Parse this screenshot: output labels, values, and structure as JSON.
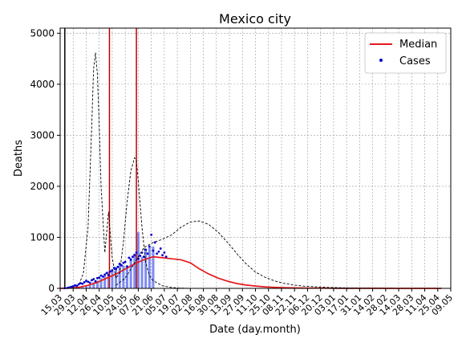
{
  "chart_data": {
    "type": "line",
    "title": "Mexico city",
    "xlabel": "Date (day.month)",
    "ylabel": "Deaths",
    "ylim": [
      0,
      5100
    ],
    "yticks": [
      0,
      1000,
      2000,
      3000,
      4000,
      5000
    ],
    "grid": true,
    "legend_position": "top-right",
    "x_tick_labels": [
      "15.03",
      "29.03",
      "12.04",
      "26.04",
      "10.05",
      "24.05",
      "07.06",
      "21.06",
      "05.07",
      "19.07",
      "02.08",
      "16.08",
      "30.08",
      "13.09",
      "27.09",
      "11.10",
      "25.10",
      "08.11",
      "22.11",
      "06.12",
      "20.12",
      "03.01",
      "17.01",
      "31.01",
      "14.02",
      "28.02",
      "14.03",
      "28.03",
      "11.04",
      "25.04",
      "09.05"
    ],
    "x_range_days": [
      0,
      420
    ],
    "vertical_lines": [
      {
        "day": 5,
        "color": "#000000"
      },
      {
        "day": 53,
        "color": "#c00000"
      },
      {
        "day": 82,
        "color": "#c00000"
      }
    ],
    "series": [
      {
        "name": "Median",
        "color": "#e31a1c",
        "x": [
          0,
          10,
          20,
          30,
          40,
          50,
          60,
          70,
          80,
          90,
          100,
          110,
          120,
          130,
          140,
          150,
          160,
          170,
          180,
          190,
          200,
          210,
          220,
          230,
          240,
          250,
          260,
          270,
          280,
          290,
          300,
          320,
          340,
          360,
          380,
          400,
          410
        ],
        "values": [
          0,
          5,
          20,
          60,
          120,
          200,
          280,
          380,
          480,
          560,
          620,
          600,
          580,
          560,
          500,
          380,
          280,
          200,
          140,
          95,
          65,
          45,
          30,
          20,
          14,
          10,
          7,
          5,
          4,
          3,
          2,
          1,
          1,
          0,
          0,
          0,
          0
        ]
      },
      {
        "name": "Cases",
        "color": "#0000cc",
        "x": [
          5,
          8,
          10,
          12,
          14,
          16,
          18,
          20,
          22,
          24,
          26,
          28,
          30,
          32,
          34,
          36,
          38,
          40,
          42,
          44,
          46,
          48,
          50,
          52,
          54,
          56,
          58,
          60,
          62,
          64,
          66,
          68,
          70,
          72,
          74,
          76,
          78,
          80,
          82,
          84,
          86,
          88,
          90,
          92,
          94,
          96,
          98,
          100,
          102,
          104,
          106,
          108,
          110,
          112,
          114
        ],
        "values": [
          5,
          10,
          20,
          30,
          40,
          60,
          50,
          80,
          100,
          90,
          120,
          150,
          130,
          110,
          160,
          180,
          140,
          200,
          210,
          250,
          230,
          270,
          300,
          260,
          330,
          350,
          400,
          380,
          420,
          480,
          450,
          500,
          520,
          430,
          600,
          560,
          620,
          650,
          700,
          580,
          640,
          700,
          620,
          760,
          680,
          820,
          1050,
          740,
          900,
          680,
          720,
          780,
          650,
          700,
          620
        ]
      },
      {
        "color": "#000000",
        "dashed": true,
        "x": [
          0,
          10,
          20,
          25,
          30,
          34,
          36,
          38,
          40,
          42,
          44,
          48,
          52,
          56,
          60,
          64,
          68,
          72,
          76,
          80,
          82,
          84,
          88,
          92,
          96,
          100,
          110,
          120,
          130,
          140,
          150,
          160
        ],
        "values": [
          0,
          5,
          60,
          300,
          1200,
          3200,
          4300,
          4620,
          4200,
          3200,
          2000,
          700,
          1500,
          600,
          200,
          300,
          900,
          1700,
          2300,
          2560,
          2500,
          2100,
          1200,
          500,
          250,
          150,
          50,
          15,
          5,
          2,
          0,
          0
        ]
      },
      {
        "color": "#000000",
        "dashed": true,
        "x": [
          60,
          70,
          80,
          90,
          100,
          110,
          120,
          130,
          140,
          150,
          160,
          170,
          180,
          190,
          200,
          210,
          220,
          230,
          240,
          250,
          260,
          280,
          300,
          320,
          340,
          360,
          380
        ],
        "values": [
          60,
          200,
          500,
          800,
          900,
          960,
          1050,
          1200,
          1300,
          1320,
          1250,
          1100,
          900,
          680,
          480,
          320,
          220,
          150,
          100,
          70,
          45,
          25,
          12,
          6,
          3,
          1,
          0
        ]
      }
    ],
    "bars": {
      "color": "#6677ee",
      "x": [
        24,
        28,
        32,
        36,
        40,
        44,
        48,
        52,
        56,
        60,
        64,
        68,
        72,
        76,
        80,
        84,
        88,
        92,
        96,
        100
      ],
      "values": [
        40,
        60,
        80,
        120,
        150,
        200,
        260,
        330,
        380,
        420,
        500,
        450,
        420,
        600,
        680,
        1100,
        620,
        750,
        800,
        820
      ]
    }
  },
  "legend": {
    "median_label": "Median",
    "cases_label": "Cases"
  }
}
